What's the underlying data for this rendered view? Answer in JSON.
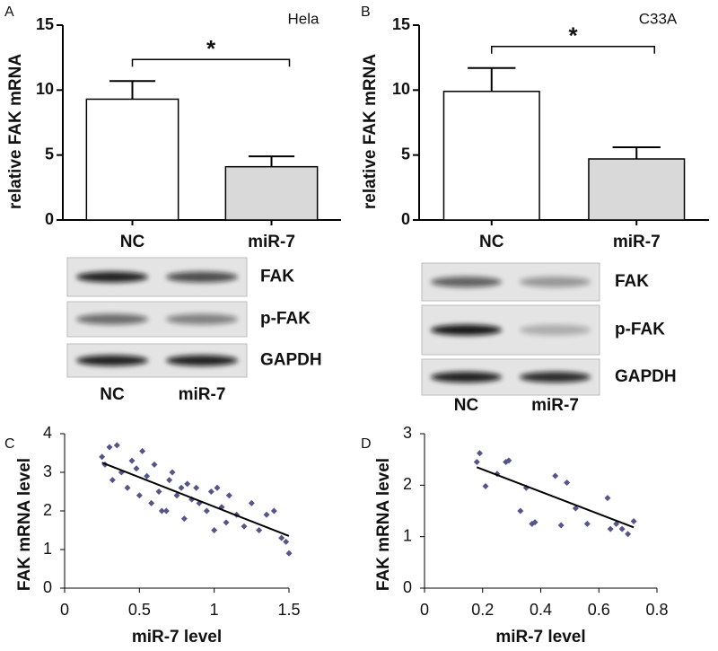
{
  "chart_data": [
    {
      "type": "bar",
      "panel": "A",
      "annotation": "Hela",
      "y_label": "relative FAK mRNA",
      "categories": [
        "NC",
        "miR-7"
      ],
      "values": [
        9.3,
        4.1
      ],
      "errors": [
        1.4,
        0.8
      ],
      "colors": [
        "#ffffff",
        "#d9d9d9"
      ],
      "ylim": [
        0,
        15
      ],
      "yticks": [
        0,
        5,
        10,
        15
      ],
      "significance": "*",
      "blot": {
        "rows": [
          "FAK",
          "p-FAK",
          "GAPDH"
        ],
        "lanes": [
          "NC",
          "miR-7"
        ]
      }
    },
    {
      "type": "bar",
      "panel": "B",
      "annotation": "C33A",
      "y_label": "relative FAK mRNA",
      "categories": [
        "NC",
        "miR-7"
      ],
      "values": [
        9.9,
        4.7
      ],
      "errors": [
        1.8,
        0.9
      ],
      "colors": [
        "#ffffff",
        "#d9d9d9"
      ],
      "ylim": [
        0,
        15
      ],
      "yticks": [
        0,
        5,
        10,
        15
      ],
      "significance": "*",
      "blot": {
        "rows": [
          "FAK",
          "p-FAK",
          "GAPDH"
        ],
        "lanes": [
          "NC",
          "miR-7"
        ]
      }
    },
    {
      "type": "scatter",
      "panel": "C",
      "x_label": "miR-7 level",
      "y_label": "FAK mRNA level",
      "color": "#55558a",
      "x": [
        0.25,
        0.27,
        0.3,
        0.32,
        0.35,
        0.38,
        0.42,
        0.45,
        0.48,
        0.5,
        0.52,
        0.55,
        0.58,
        0.6,
        0.63,
        0.65,
        0.68,
        0.7,
        0.72,
        0.75,
        0.78,
        0.8,
        0.82,
        0.85,
        0.88,
        0.9,
        0.95,
        0.98,
        1.0,
        1.02,
        1.05,
        1.08,
        1.1,
        1.15,
        1.2,
        1.25,
        1.3,
        1.35,
        1.4,
        1.45,
        1.48,
        1.5
      ],
      "y": [
        3.4,
        3.2,
        3.65,
        2.8,
        3.7,
        3.0,
        2.6,
        3.3,
        3.1,
        2.4,
        3.55,
        2.9,
        2.2,
        3.2,
        2.5,
        2.0,
        2.0,
        2.8,
        3.0,
        2.4,
        2.6,
        1.8,
        2.7,
        2.3,
        2.6,
        2.2,
        2.0,
        2.5,
        1.5,
        2.6,
        2.1,
        1.7,
        2.4,
        1.9,
        1.6,
        2.2,
        1.5,
        1.9,
        2.0,
        1.3,
        1.2,
        0.9
      ],
      "trend": {
        "x": [
          0.25,
          1.5
        ],
        "y": [
          3.25,
          1.35
        ]
      },
      "xlim": [
        0,
        1.5
      ],
      "xticks": [
        0,
        0.5,
        1,
        1.5
      ],
      "ylim": [
        0,
        4
      ],
      "yticks": [
        0,
        1,
        2,
        3,
        4
      ]
    },
    {
      "type": "scatter",
      "panel": "D",
      "x_label": "miR-7 level",
      "y_label": "FAK mRNA level",
      "color": "#55558a",
      "x": [
        0.18,
        0.19,
        0.21,
        0.25,
        0.28,
        0.29,
        0.33,
        0.35,
        0.37,
        0.38,
        0.45,
        0.47,
        0.49,
        0.52,
        0.56,
        0.63,
        0.64,
        0.66,
        0.68,
        0.7,
        0.72
      ],
      "y": [
        2.45,
        2.62,
        1.98,
        2.22,
        2.45,
        2.48,
        1.5,
        1.95,
        1.25,
        1.28,
        2.18,
        1.22,
        2.05,
        1.55,
        1.25,
        1.75,
        1.15,
        1.25,
        1.15,
        1.05,
        1.3
      ],
      "trend": {
        "x": [
          0.18,
          0.72
        ],
        "y": [
          2.35,
          1.18
        ]
      },
      "xlim": [
        0,
        0.8
      ],
      "xticks": [
        0,
        0.2,
        0.4,
        0.6,
        0.8
      ],
      "ylim": [
        0,
        3
      ],
      "yticks": [
        0,
        1,
        2,
        3
      ]
    }
  ]
}
